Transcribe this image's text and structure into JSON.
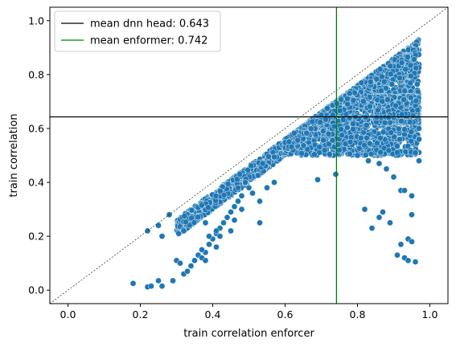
{
  "chart_data": {
    "type": "scatter",
    "xlabel": "train correlation enforcer",
    "ylabel": "train correlation",
    "xlim": [
      -0.05,
      1.05
    ],
    "ylim": [
      -0.05,
      1.05
    ],
    "x_ticks": [
      "0.0",
      "0.2",
      "0.4",
      "0.6",
      "0.8",
      "1.0"
    ],
    "y_ticks": [
      "0.0",
      "0.2",
      "0.4",
      "0.6",
      "0.8",
      "1.0"
    ],
    "grid": false,
    "legend_position": "top-left",
    "point_color": "#1f77b4",
    "reference_line": {
      "from": [
        -0.05,
        -0.05
      ],
      "to": [
        1.05,
        1.05
      ],
      "style": "dashed",
      "color": "#000000"
    },
    "lines": [
      {
        "name": "mean dnn head: 0.643",
        "orientation": "horizontal",
        "value": 0.643,
        "color": "#000000"
      },
      {
        "name": "mean enformer: 0.742",
        "orientation": "vertical",
        "value": 0.742,
        "color": "#008000"
      }
    ],
    "dense_regions": [
      {
        "kind": "band",
        "x_range": [
          0.3,
          0.97
        ],
        "lower_offset": 0.04,
        "upper_offset": 0.1,
        "count": 1500
      },
      {
        "kind": "blob",
        "x_range": [
          0.6,
          0.97
        ],
        "y_range": [
          0.5,
          0.88
        ],
        "count": 2200
      },
      {
        "kind": "blob",
        "x_range": [
          0.85,
          0.97
        ],
        "y_range": [
          0.62,
          0.72
        ],
        "count": 500
      }
    ],
    "points": [
      [
        0.18,
        0.025
      ],
      [
        0.22,
        0.012
      ],
      [
        0.23,
        0.015
      ],
      [
        0.25,
        0.035
      ],
      [
        0.26,
        0.015
      ],
      [
        0.29,
        0.035
      ],
      [
        0.3,
        0.11
      ],
      [
        0.31,
        0.1
      ],
      [
        0.32,
        0.06
      ],
      [
        0.33,
        0.07
      ],
      [
        0.34,
        0.09
      ],
      [
        0.35,
        0.11
      ],
      [
        0.36,
        0.13
      ],
      [
        0.37,
        0.12
      ],
      [
        0.38,
        0.14
      ],
      [
        0.39,
        0.17
      ],
      [
        0.4,
        0.19
      ],
      [
        0.41,
        0.21
      ],
      [
        0.42,
        0.23
      ],
      [
        0.43,
        0.25
      ],
      [
        0.44,
        0.27
      ],
      [
        0.45,
        0.29
      ],
      [
        0.46,
        0.31
      ],
      [
        0.47,
        0.33
      ],
      [
        0.48,
        0.35
      ],
      [
        0.37,
        0.15
      ],
      [
        0.38,
        0.11
      ],
      [
        0.39,
        0.2
      ],
      [
        0.41,
        0.16
      ],
      [
        0.42,
        0.2
      ],
      [
        0.22,
        0.22
      ],
      [
        0.25,
        0.24
      ],
      [
        0.26,
        0.2
      ],
      [
        0.28,
        0.28
      ],
      [
        0.32,
        0.22
      ],
      [
        0.38,
        0.25
      ],
      [
        0.41,
        0.22
      ],
      [
        0.45,
        0.22
      ],
      [
        0.46,
        0.26
      ],
      [
        0.48,
        0.3
      ],
      [
        0.49,
        0.4
      ],
      [
        0.5,
        0.38
      ],
      [
        0.51,
        0.36
      ],
      [
        0.53,
        0.25
      ],
      [
        0.55,
        0.38
      ],
      [
        0.57,
        0.4
      ],
      [
        0.53,
        0.33
      ],
      [
        0.47,
        0.38
      ],
      [
        0.69,
        0.41
      ],
      [
        0.72,
        0.58
      ],
      [
        0.74,
        0.43
      ],
      [
        0.75,
        0.52
      ],
      [
        0.78,
        0.55
      ],
      [
        0.8,
        0.5
      ],
      [
        0.83,
        0.48
      ],
      [
        0.86,
        0.47
      ],
      [
        0.88,
        0.45
      ],
      [
        0.9,
        0.42
      ],
      [
        0.92,
        0.37
      ],
      [
        0.93,
        0.37
      ],
      [
        0.95,
        0.35
      ],
      [
        0.82,
        0.3
      ],
      [
        0.84,
        0.23
      ],
      [
        0.86,
        0.27
      ],
      [
        0.87,
        0.29
      ],
      [
        0.89,
        0.25
      ],
      [
        0.91,
        0.13
      ],
      [
        0.93,
        0.12
      ],
      [
        0.92,
        0.17
      ],
      [
        0.94,
        0.19
      ],
      [
        0.95,
        0.18
      ],
      [
        0.96,
        0.105
      ],
      [
        0.94,
        0.11
      ],
      [
        0.95,
        0.28
      ],
      [
        0.97,
        0.48
      ],
      [
        0.96,
        0.51
      ],
      [
        0.97,
        0.56
      ],
      [
        0.97,
        0.6
      ]
    ]
  },
  "legend": {
    "entries": [
      {
        "label": "mean dnn head: 0.643",
        "color": "#000000"
      },
      {
        "label": "mean enformer: 0.742",
        "color": "#008000"
      }
    ]
  }
}
